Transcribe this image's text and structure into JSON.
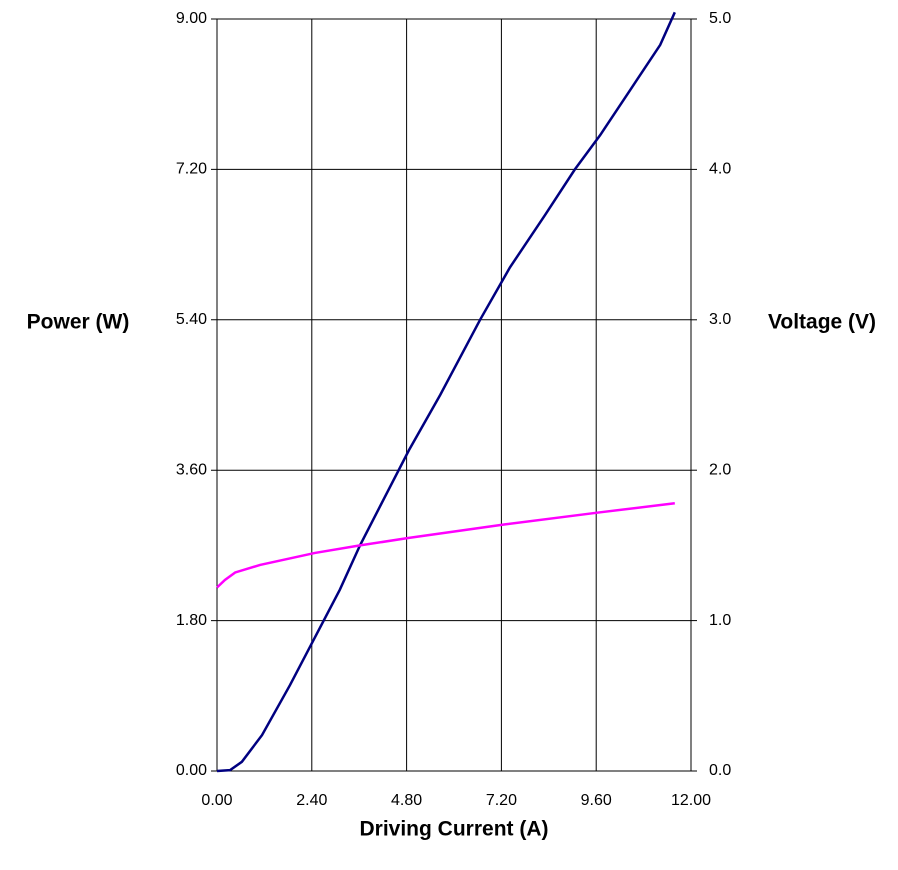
{
  "chart_data": {
    "type": "line",
    "xlabel": "Driving Current (A)",
    "ylabel": "Power (W)",
    "y2label": "Voltage (V)",
    "grid": true,
    "xlim": [
      0,
      12
    ],
    "xticks": [
      {
        "value": 0,
        "label": "0.00"
      },
      {
        "value": 2.4,
        "label": "2.40"
      },
      {
        "value": 4.8,
        "label": "4.80"
      },
      {
        "value": 7.2,
        "label": "7.20"
      },
      {
        "value": 9.6,
        "label": "9.60"
      },
      {
        "value": 12,
        "label": "12.00"
      }
    ],
    "ylim": [
      0,
      9
    ],
    "yticks": [
      {
        "value": 0,
        "label": "0.00"
      },
      {
        "value": 1.8,
        "label": "1.80"
      },
      {
        "value": 3.6,
        "label": "3.60"
      },
      {
        "value": 5.4,
        "label": "5.40"
      },
      {
        "value": 7.2,
        "label": "7.20"
      },
      {
        "value": 9,
        "label": "9.00"
      }
    ],
    "y2lim": [
      0,
      5
    ],
    "y2ticks": [
      {
        "value": 0,
        "label": "0.0"
      },
      {
        "value": 1,
        "label": "1.0"
      },
      {
        "value": 2,
        "label": "2.0"
      },
      {
        "value": 3,
        "label": "3.0"
      },
      {
        "value": 4,
        "label": "4.0"
      },
      {
        "value": 5,
        "label": "5.0"
      }
    ],
    "series": [
      {
        "color": "#000080",
        "axis": "y",
        "x": [
          0,
          0.33,
          0.63,
          1.14,
          1.85,
          2.48,
          3.11,
          3.62,
          4.25,
          4.86,
          5.65,
          6.66,
          7.42,
          8.3,
          9.06,
          9.7,
          10.46,
          11.22,
          11.59
        ],
        "values": [
          0,
          0.01,
          0.11,
          0.43,
          1.03,
          1.6,
          2.17,
          2.7,
          3.28,
          3.84,
          4.5,
          5.4,
          6.03,
          6.65,
          7.2,
          7.61,
          8.15,
          8.69,
          9.08
        ]
      },
      {
        "color": "#ff00ff",
        "axis": "y2",
        "x": [
          0,
          0.2,
          0.46,
          1.09,
          2.48,
          3.62,
          4.86,
          7.29,
          9.7,
          11.59
        ],
        "values": [
          1.22,
          1.27,
          1.32,
          1.37,
          1.45,
          1.5,
          1.55,
          1.64,
          1.72,
          1.78
        ]
      }
    ]
  }
}
